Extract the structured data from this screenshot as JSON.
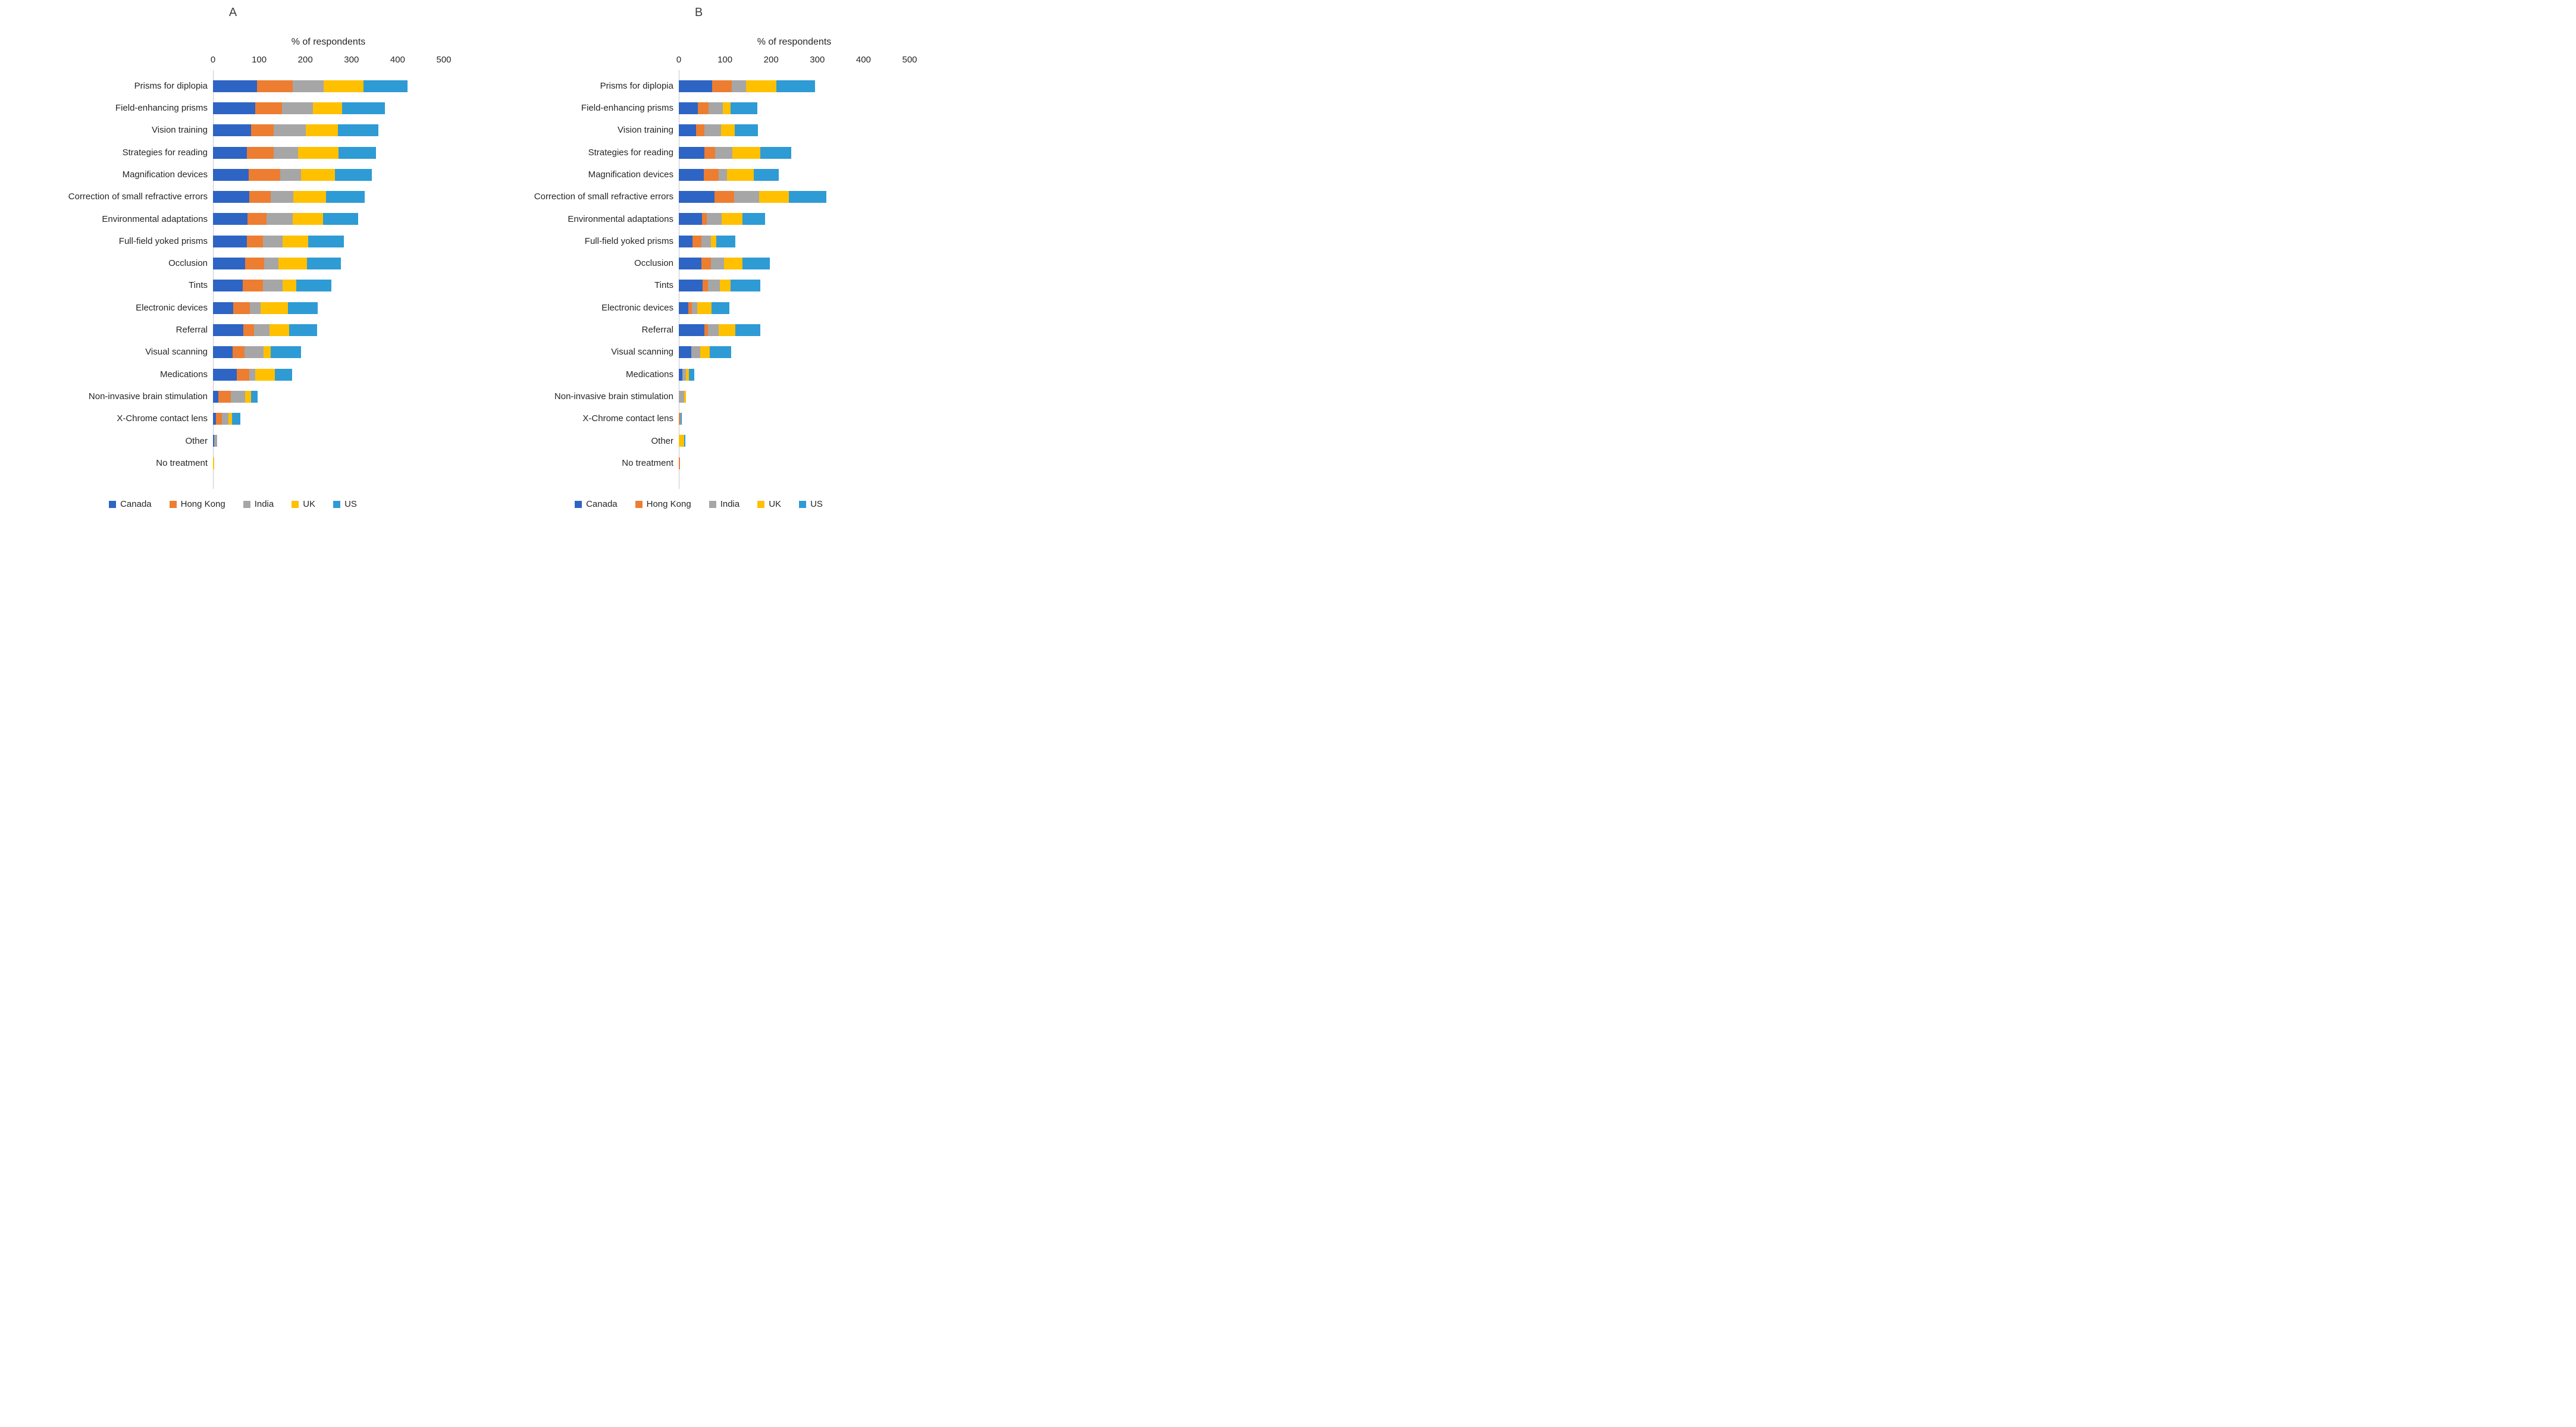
{
  "figure": {
    "background": "#ffffff"
  },
  "legend_labels": [
    "Canada",
    "Hong Kong",
    "India",
    "UK",
    "US"
  ],
  "palette": {
    "canada": "#2E64C4",
    "hong_kong": "#ED7D31",
    "india": "#A6A6A6",
    "uk": "#FFC000",
    "us": "#2E9BD5"
  },
  "chart_data": [
    {
      "type": "bar",
      "stacked": true,
      "orientation": "horizontal",
      "title": "A",
      "xlabel": "% of respondents",
      "xlim": [
        0,
        500
      ],
      "xticks": [
        0,
        100,
        200,
        300,
        400,
        500
      ],
      "grid": false,
      "legend_position": "bottom",
      "categories": [
        "Prisms for diplopia",
        "Field-enhancing prisms",
        "Vision training",
        "Strategies for reading",
        "Magnification devices",
        "Correction of small refractive errors",
        "Environmental adaptations",
        "Full-field yoked prisms",
        "Occlusion",
        "Tints",
        "Electronic devices",
        "Referral",
        "Visual scanning",
        "Medications",
        "Non-invasive brain stimulation",
        "X-Chrome contact lens",
        "Other",
        "No treatment"
      ],
      "series": [
        {
          "name": "Canada",
          "color": "#2E64C4",
          "values": [
            95,
            92,
            83,
            73,
            77,
            79,
            75,
            73,
            70,
            64,
            44,
            66,
            43,
            51,
            12,
            7,
            3,
            0
          ]
        },
        {
          "name": "Hong Kong",
          "color": "#ED7D31",
          "values": [
            78,
            58,
            49,
            59,
            68,
            46,
            41,
            35,
            41,
            44,
            36,
            23,
            25,
            28,
            27,
            12,
            0,
            0
          ]
        },
        {
          "name": "India",
          "color": "#A6A6A6",
          "values": [
            67,
            67,
            69,
            52,
            46,
            49,
            57,
            43,
            31,
            43,
            23,
            33,
            42,
            12,
            31,
            14,
            6,
            0
          ]
        },
        {
          "name": "UK",
          "color": "#FFC000",
          "values": [
            86,
            63,
            70,
            88,
            73,
            71,
            65,
            55,
            61,
            30,
            60,
            43,
            15,
            43,
            13,
            8,
            0,
            2
          ]
        },
        {
          "name": "US",
          "color": "#2E9BD5",
          "values": [
            95,
            92,
            87,
            81,
            80,
            83,
            77,
            77,
            74,
            75,
            64,
            60,
            66,
            37,
            14,
            18,
            0,
            0
          ]
        }
      ]
    },
    {
      "type": "bar",
      "stacked": true,
      "orientation": "horizontal",
      "title": "B",
      "xlabel": "% of respondents",
      "xlim": [
        0,
        500
      ],
      "xticks": [
        0,
        100,
        200,
        300,
        400,
        500
      ],
      "grid": false,
      "legend_position": "bottom",
      "categories": [
        "Prisms for diplopia",
        "Field-enhancing prisms",
        "Vision training",
        "Strategies for reading",
        "Magnification devices",
        "Correction of small refractive errors",
        "Environmental adaptations",
        "Full-field yoked prisms",
        "Occlusion",
        "Tints",
        "Electronic devices",
        "Referral",
        "Visual scanning",
        "Medications",
        "Non-invasive brain stimulation",
        "X-Chrome contact lens",
        "Other",
        "No treatment"
      ],
      "series": [
        {
          "name": "Canada",
          "color": "#2E64C4",
          "values": [
            72,
            41,
            37,
            55,
            54,
            77,
            50,
            29,
            49,
            51,
            21,
            55,
            27,
            8,
            0,
            0,
            0,
            0
          ]
        },
        {
          "name": "Hong Kong",
          "color": "#ED7D31",
          "values": [
            43,
            24,
            18,
            24,
            33,
            43,
            10,
            20,
            20,
            12,
            7,
            8,
            0,
            0,
            0,
            2,
            0,
            3
          ]
        },
        {
          "name": "India",
          "color": "#A6A6A6",
          "values": [
            31,
            30,
            37,
            37,
            18,
            54,
            33,
            20,
            29,
            26,
            12,
            23,
            20,
            7,
            11,
            2,
            0,
            0
          ]
        },
        {
          "name": "UK",
          "color": "#FFC000",
          "values": [
            65,
            17,
            29,
            61,
            57,
            65,
            45,
            12,
            40,
            23,
            31,
            36,
            20,
            7,
            4,
            0,
            11,
            0
          ]
        },
        {
          "name": "US",
          "color": "#2E9BD5",
          "values": [
            84,
            58,
            51,
            66,
            54,
            81,
            49,
            41,
            59,
            64,
            38,
            54,
            46,
            11,
            0,
            3,
            3,
            0
          ]
        }
      ]
    }
  ],
  "layout_note": "two stacked horizontal bar chart panels side by side"
}
